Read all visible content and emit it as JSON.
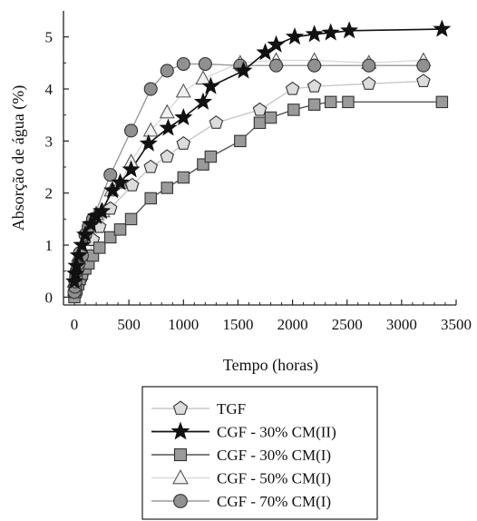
{
  "chart_data": {
    "type": "scatter",
    "title": "",
    "xlabel": "Tempo (horas)",
    "ylabel": "Absorção de água (%)",
    "xlim": [
      -100,
      3500
    ],
    "ylim": [
      -0.15,
      5.5
    ],
    "xticks": [
      0,
      500,
      1000,
      1500,
      2000,
      2500,
      3000,
      3500
    ],
    "yticks": [
      0,
      1,
      2,
      3,
      4,
      5
    ],
    "grid": false,
    "legend_position": "bottom-center",
    "series": [
      {
        "name": "TGF",
        "marker": "pentagon",
        "line_color": "#c8c8c8",
        "fill": "#dcdcdc",
        "stroke": "#333333",
        "x": [
          0,
          5,
          10,
          20,
          30,
          50,
          70,
          100,
          130,
          170,
          230,
          330,
          530,
          700,
          850,
          1000,
          1300,
          1700,
          2000,
          2200,
          2700,
          3200
        ],
        "y": [
          0.0,
          0.05,
          0.1,
          0.15,
          0.2,
          0.3,
          0.4,
          0.55,
          0.75,
          1.1,
          1.35,
          1.7,
          2.15,
          2.5,
          2.7,
          2.95,
          3.35,
          3.6,
          4.0,
          4.05,
          4.1,
          4.15
        ]
      },
      {
        "name": "CGF - 30% CM(II)",
        "marker": "star",
        "line_color": "#111111",
        "fill": "#111111",
        "stroke": "#111111",
        "x": [
          0,
          10,
          20,
          40,
          70,
          100,
          150,
          200,
          250,
          350,
          420,
          520,
          680,
          860,
          1000,
          1180,
          1250,
          1550,
          1750,
          1850,
          2020,
          2200,
          2350,
          2520,
          3370
        ],
        "y": [
          0.3,
          0.45,
          0.6,
          0.8,
          1.0,
          1.2,
          1.4,
          1.55,
          1.65,
          2.05,
          2.2,
          2.45,
          2.95,
          3.25,
          3.45,
          3.75,
          4.05,
          4.35,
          4.7,
          4.85,
          5.0,
          5.05,
          5.08,
          5.12,
          5.15
        ]
      },
      {
        "name": "CGF - 30% CM(I)",
        "marker": "square",
        "line_color": "#555555",
        "fill": "#9a9a9a",
        "stroke": "#333333",
        "x": [
          0,
          10,
          20,
          35,
          50,
          70,
          100,
          130,
          170,
          230,
          330,
          420,
          520,
          700,
          850,
          1000,
          1180,
          1250,
          1520,
          1700,
          1800,
          2010,
          2200,
          2350,
          2510,
          3370
        ],
        "y": [
          0.0,
          0.1,
          0.15,
          0.25,
          0.35,
          0.45,
          0.55,
          0.65,
          0.8,
          0.95,
          1.15,
          1.3,
          1.5,
          1.9,
          2.1,
          2.3,
          2.55,
          2.7,
          3.0,
          3.35,
          3.45,
          3.6,
          3.7,
          3.75,
          3.75,
          3.75
        ]
      },
      {
        "name": "CGF - 50% CM(I)",
        "marker": "triangle",
        "line_color": "#dadada",
        "fill": "#f2f2f2",
        "stroke": "#555555",
        "x": [
          0,
          10,
          20,
          40,
          70,
          100,
          150,
          200,
          260,
          340,
          420,
          520,
          700,
          850,
          1000,
          1180,
          1520,
          1850,
          2200,
          2700,
          3200
        ],
        "y": [
          0.3,
          0.4,
          0.6,
          0.8,
          0.9,
          1.1,
          1.35,
          1.6,
          1.65,
          2.05,
          2.2,
          2.6,
          3.2,
          3.55,
          3.95,
          4.2,
          4.5,
          4.55,
          4.55,
          4.5,
          4.55
        ]
      },
      {
        "name": "CGF - 70% CM(I)",
        "marker": "circle",
        "line_color": "#9a9a9a",
        "fill": "#909090",
        "stroke": "#333333",
        "x": [
          0,
          5,
          10,
          15,
          20,
          30,
          40,
          50,
          70,
          100,
          130,
          170,
          330,
          520,
          700,
          850,
          1000,
          1200,
          1520,
          1850,
          2200,
          2700,
          3200
        ],
        "y": [
          0.1,
          0.2,
          0.3,
          0.4,
          0.5,
          0.55,
          0.65,
          0.85,
          0.8,
          1.2,
          1.35,
          1.5,
          2.35,
          3.2,
          4.0,
          4.35,
          4.48,
          4.48,
          4.45,
          4.45,
          4.45,
          4.45,
          4.45
        ]
      }
    ]
  }
}
